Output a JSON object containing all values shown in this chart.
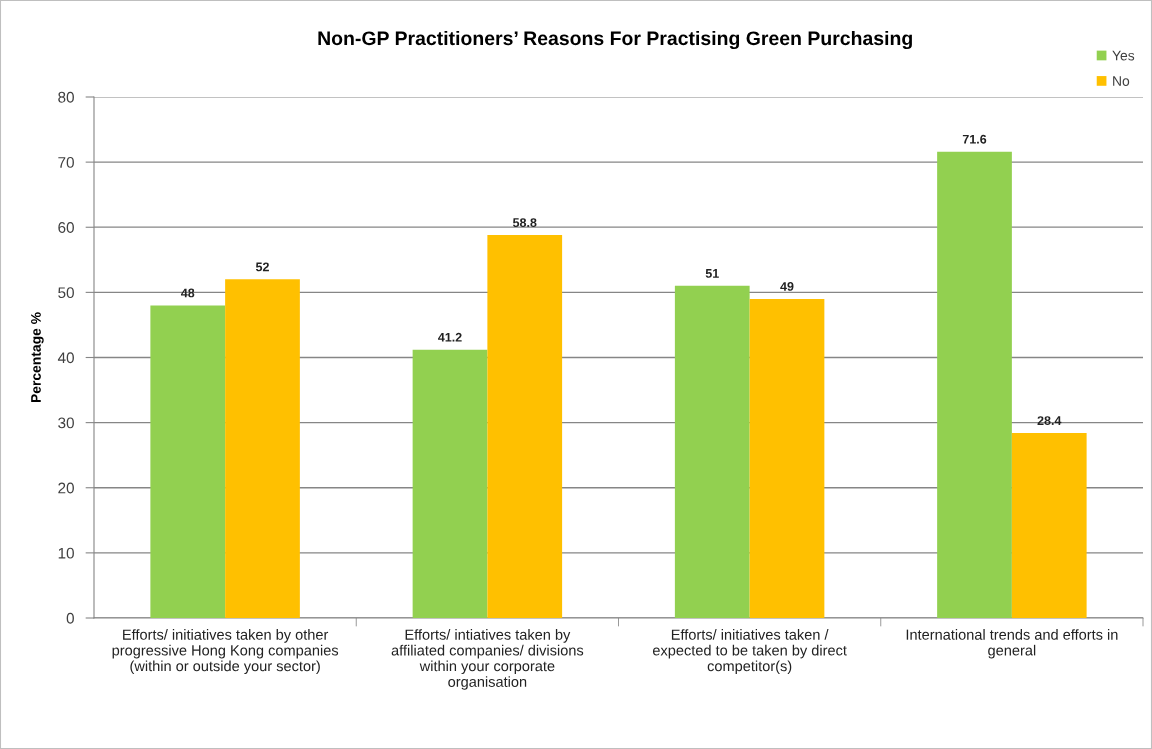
{
  "chart_data": {
    "type": "bar",
    "title": "Non-GP Practitioners’ Reasons For Practising Green Purchasing",
    "ylabel": "Percentage %",
    "categories": [
      "Efforts/ initiatives taken by other\nprogressive Hong Kong companies\n(within or outside your sector)",
      "Efforts/ intiatives taken by\naffiliated companies/ divisions\nwithin your corporate\norganisation",
      "Efforts/ initiatives taken /\nexpected to be taken by direct\ncompetitor(s)",
      "International trends and efforts in\ngeneral"
    ],
    "series": [
      {
        "name": "Yes",
        "color": "#92d050",
        "values": [
          48,
          41.2,
          51,
          71.6
        ]
      },
      {
        "name": "No",
        "color": "#ffc000",
        "values": [
          52,
          58.8,
          49,
          28.4
        ]
      }
    ],
    "ylim": [
      0,
      80
    ],
    "yticks": [
      0,
      10,
      20,
      30,
      40,
      50,
      60,
      70,
      80
    ],
    "grid": "y",
    "legend": "top right",
    "data_labels": true
  }
}
